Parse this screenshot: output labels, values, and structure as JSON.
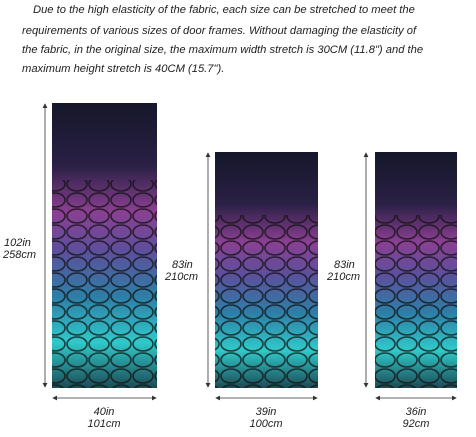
{
  "description": {
    "lines": [
      "Due to the high elasticity of the fabric, each size can be stretched to meet the",
      "requirements of various sizes of door frames. Without damaging the elasticity of",
      "the fabric, in the original size, the maximum width stretch is 30CM (11.8\") and the",
      "maximum height stretch is 40CM (15.7\")."
    ]
  },
  "panels": [
    {
      "height_in": "102in",
      "height_cm": "258cm",
      "width_in": "40in",
      "width_cm": "101cm"
    },
    {
      "height_in": "83in",
      "height_cm": "210cm",
      "width_in": "39in",
      "width_cm": "100cm"
    },
    {
      "height_in": "83in",
      "height_cm": "210cm",
      "width_in": "36in",
      "width_cm": "92cm"
    }
  ]
}
